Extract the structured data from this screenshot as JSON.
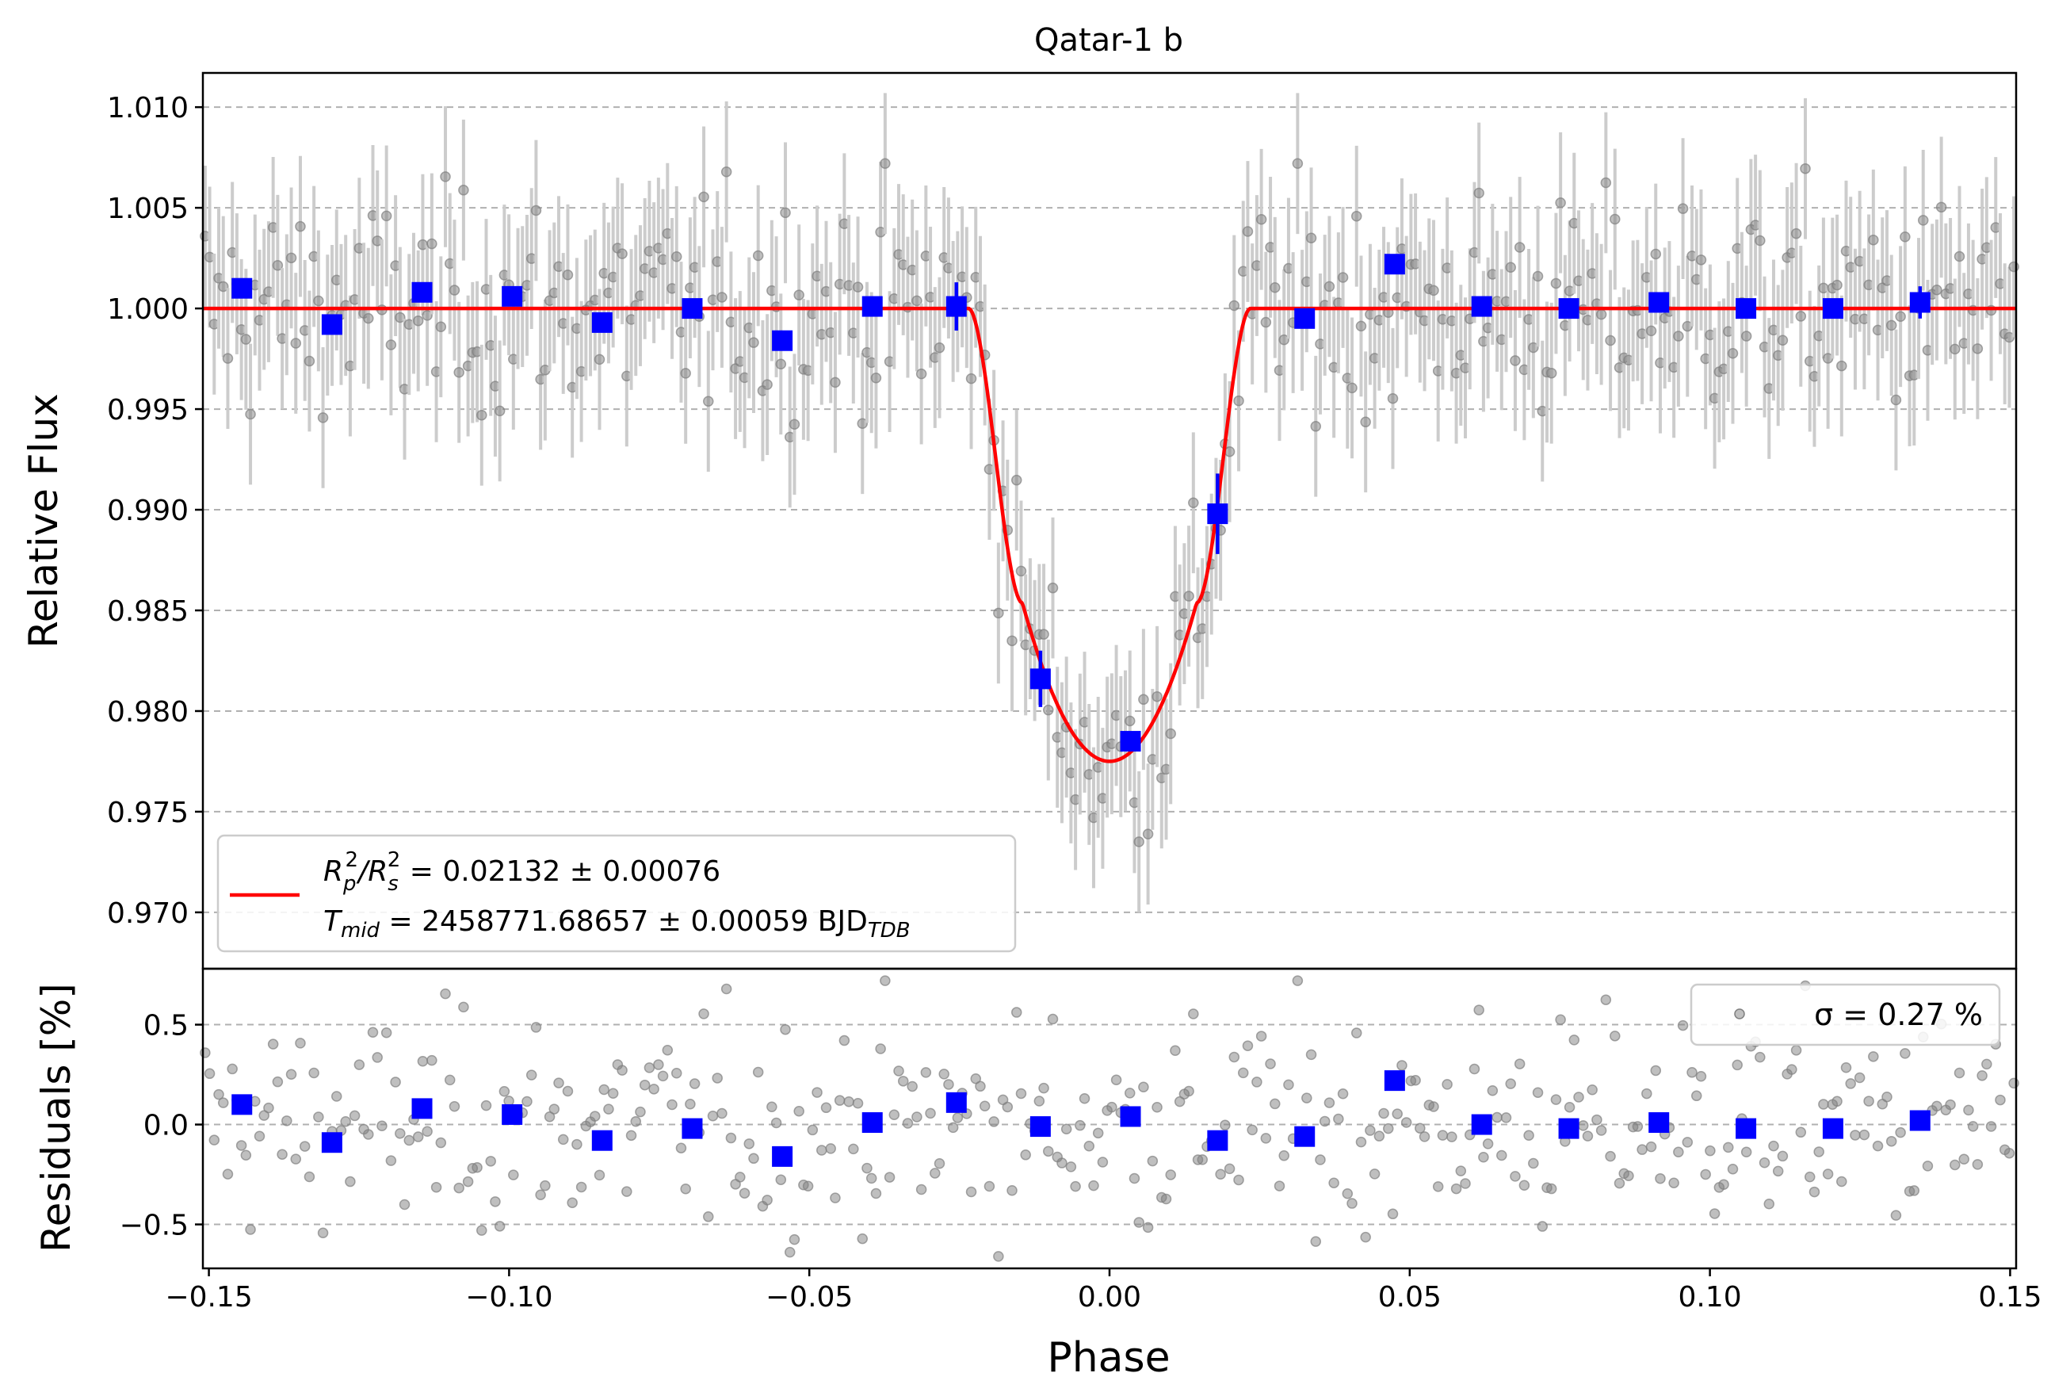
{
  "chart_data": [
    {
      "type": "scatter",
      "panel": "light curve",
      "title": "Qatar-1 b",
      "xlabel": "",
      "ylabel": "Relative Flux",
      "xlim": [
        -0.151,
        0.151
      ],
      "ylim": [
        0.9672,
        1.0117
      ],
      "yticks": [
        "0.970",
        "0.975",
        "0.980",
        "0.985",
        "0.990",
        "0.995",
        "1.000",
        "1.005",
        "1.010"
      ],
      "grid": "horizontal dashed",
      "legend": {
        "placement": "lower-left",
        "line1": [
          "R",
          "p",
          "2",
          "/R",
          "s",
          "2",
          " = 0.02132 ± 0.00076"
        ],
        "line2": [
          "T",
          "mid",
          " = 2458771.68657 ± 0.00059 BJD",
          "TDB"
        ]
      },
      "model": {
        "name": "transit model",
        "color": "#ff0000",
        "depth": 0.0225,
        "t_ingress_start": -0.0235,
        "t_ingress_end": -0.0145,
        "t_egress_start": 0.0145,
        "t_egress_end": 0.0235
      },
      "binned": {
        "color": "#0000ff",
        "x": [
          -0.1445,
          -0.1295,
          -0.1145,
          -0.0995,
          -0.0845,
          -0.0695,
          -0.0545,
          -0.0395,
          -0.0255,
          -0.0115,
          0.0035,
          0.018,
          0.0325,
          0.0475,
          0.062,
          0.0765,
          0.0915,
          0.106,
          0.1205,
          0.135
        ],
        "y": [
          1.001,
          0.9992,
          1.0008,
          1.0006,
          0.9993,
          1.0,
          0.9984,
          1.0001,
          1.0001,
          0.9816,
          0.9785,
          0.9898,
          0.9995,
          1.0022,
          1.0001,
          1.0,
          1.0003,
          1.0,
          1.0,
          1.0003
        ],
        "err": [
          0.0004,
          0.0004,
          0.0004,
          0.0004,
          0.0004,
          0.0004,
          0.0004,
          0.0004,
          0.0012,
          0.0014,
          0.0004,
          0.002,
          0.0004,
          0.0004,
          0.0004,
          0.0004,
          0.0004,
          0.0004,
          0.0004,
          0.0008
        ]
      },
      "raw_points": {
        "color": "#808080",
        "count": 400,
        "x_range": [
          -0.151,
          0.151
        ],
        "scatter_sigma": 0.0027,
        "errorbar": 0.0035
      }
    },
    {
      "type": "scatter",
      "panel": "residuals",
      "xlabel": "Phase",
      "ylabel": "Residuals [%]",
      "xlim": [
        -0.151,
        0.151
      ],
      "ylim": [
        -0.72,
        0.78
      ],
      "xticks": [
        "−0.15",
        "−0.10",
        "−0.05",
        "0.00",
        "0.05",
        "0.10",
        "0.15"
      ],
      "yticks": [
        "−0.5",
        "0.0",
        "0.5"
      ],
      "grid": "horizontal dashed",
      "legend": {
        "placement": "top-right",
        "label": "σ = 0.27 %"
      },
      "binned": {
        "color": "#0000ff",
        "x": [
          -0.1445,
          -0.1295,
          -0.1145,
          -0.0995,
          -0.0845,
          -0.0695,
          -0.0545,
          -0.0395,
          -0.0255,
          -0.0115,
          0.0035,
          0.018,
          0.0325,
          0.0475,
          0.062,
          0.0765,
          0.0915,
          0.106,
          0.1205,
          0.135
        ],
        "y": [
          0.1,
          -0.09,
          0.08,
          0.05,
          -0.08,
          -0.02,
          -0.16,
          0.01,
          0.11,
          -0.01,
          0.04,
          -0.08,
          -0.06,
          0.22,
          0.0,
          -0.02,
          0.01,
          -0.02,
          -0.02,
          0.02
        ]
      }
    }
  ]
}
